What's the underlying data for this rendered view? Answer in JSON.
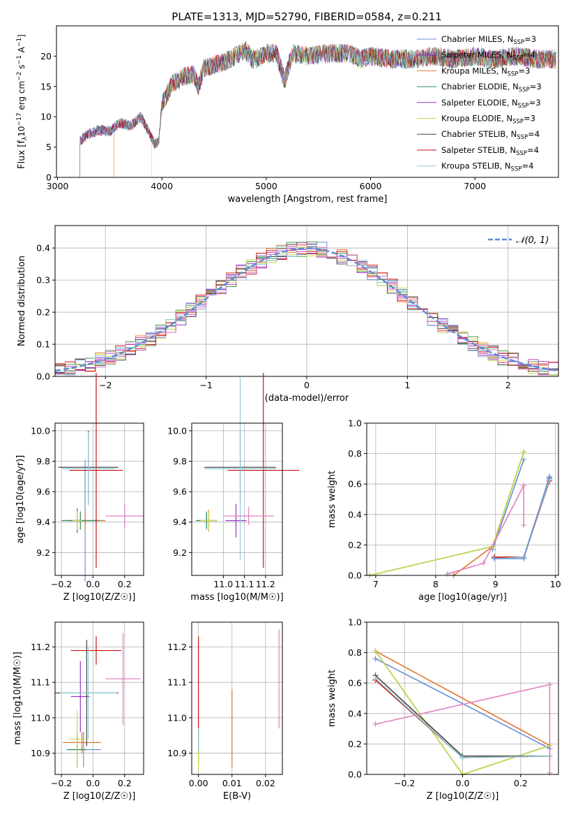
{
  "figure_title": "PLATE=1313, MJD=52790, FIBERID=0584, z=0.211",
  "chart_data": [
    {
      "id": "spectrum",
      "type": "line",
      "title": "PLATE=1313, MJD=52790, FIBERID=0584, z=0.211",
      "xlabel": "wavelength [Angstrom, rest frame]",
      "ylabel": "Flux [f_λ 10^-17 erg cm^-2 s^-1 A^-1]",
      "xlim": [
        2990,
        7800
      ],
      "ylim": [
        0,
        25
      ],
      "xticks": [
        3000,
        4000,
        5000,
        6000,
        7000
      ],
      "yticks": [
        0,
        5,
        10,
        15,
        20
      ],
      "grid": false,
      "legend_position": "right",
      "data_points": [
        [
          3215,
          6.0
        ],
        [
          3300,
          7.2
        ],
        [
          3400,
          7.8
        ],
        [
          3500,
          7.6
        ],
        [
          3600,
          9.0
        ],
        [
          3700,
          8.5
        ],
        [
          3800,
          10.0
        ],
        [
          3860,
          8.0
        ],
        [
          3930,
          5.5
        ],
        [
          3970,
          6.0
        ],
        [
          4000,
          12.0
        ],
        [
          4100,
          15.5
        ],
        [
          4200,
          16.5
        ],
        [
          4300,
          17.0
        ],
        [
          4350,
          15.0
        ],
        [
          4400,
          18.0
        ],
        [
          4500,
          18.5
        ],
        [
          4600,
          19.0
        ],
        [
          4700,
          20.0
        ],
        [
          4800,
          21.0
        ],
        [
          4860,
          19.5
        ],
        [
          4900,
          19.5
        ],
        [
          5000,
          20.5
        ],
        [
          5100,
          20.5
        ],
        [
          5175,
          16.0
        ],
        [
          5250,
          20.5
        ],
        [
          5400,
          20.0
        ],
        [
          5600,
          20.5
        ],
        [
          5800,
          20.5
        ],
        [
          5900,
          19.5
        ],
        [
          6000,
          20.0
        ],
        [
          6200,
          19.5
        ],
        [
          6400,
          19.5
        ],
        [
          6600,
          20.0
        ],
        [
          6800,
          19.5
        ],
        [
          7000,
          20.0
        ],
        [
          7200,
          19.5
        ],
        [
          7400,
          20.0
        ],
        [
          7600,
          19.5
        ]
      ],
      "series": [
        {
          "name": "Chabrier MILES, N_SSP=3",
          "color": "#6a8fd8",
          "start": 3215
        },
        {
          "name": "Salpeter MILES, N_SSP=4",
          "color": "#7b2fbf",
          "start": 3215
        },
        {
          "name": "Kroupa MILES, N_SSP=3",
          "color": "#e1762f",
          "start": 3540
        },
        {
          "name": "Chabrier ELODIE, N_SSP=3",
          "color": "#2e8b57",
          "start": 3215
        },
        {
          "name": "Salpeter ELODIE, N_SSP=3",
          "color": "#9b30c9",
          "start": 3215
        },
        {
          "name": "Kroupa ELODIE, N_SSP=3",
          "color": "#c8d94a",
          "start": 3900
        },
        {
          "name": "Chabrier STELIB, N_SSP=4",
          "color": "#444444",
          "start": 3215
        },
        {
          "name": "Salpeter STELIB, N_SSP=4",
          "color": "#cc1111",
          "start": 3215
        },
        {
          "name": "Kroupa STELIB, N_SSP=4",
          "color": "#8ecfd8",
          "start": 3215
        }
      ]
    },
    {
      "id": "histogram",
      "type": "bar",
      "title": "",
      "xlabel": "(data-model)/error",
      "ylabel": "Normed distribution",
      "xlim": [
        -2.5,
        2.5
      ],
      "ylim": [
        0,
        0.47
      ],
      "xticks": [
        -2,
        -1,
        0,
        1,
        2
      ],
      "yticks": [
        0.0,
        0.1,
        0.2,
        0.3,
        0.4
      ],
      "grid": true,
      "legend_position": "top-right",
      "legend": "N(0,1)",
      "gaussian_color": "#5b8bd6",
      "bin_edges_start": -2.5,
      "bin_width": 0.1,
      "hist_colors": [
        "#6a8fd8",
        "#9b30c9",
        "#e1762f",
        "#4a9a4a",
        "#c040c0",
        "#c8d94a",
        "#444444",
        "#cc1111",
        "#8ecfd8",
        "#e080c0"
      ]
    },
    {
      "id": "age-vs-Z",
      "type": "scatter",
      "xlabel": "Z [log10(Z/Z☉)]",
      "ylabel": "age  [log10(age/yr)]",
      "xlim": [
        -0.24,
        0.32
      ],
      "ylim": [
        9.05,
        10.05
      ],
      "xticks": [
        -0.2,
        0.0,
        0.2
      ],
      "yticks": [
        9.2,
        9.4,
        9.6,
        9.8,
        10.0
      ],
      "grid": true,
      "points": [
        {
          "x": -0.05,
          "y": 9.41,
          "xerr": 0.12,
          "yerr": 0.4,
          "color": "#6a8fd8"
        },
        {
          "x": -0.1,
          "y": 9.41,
          "xerr": 0.05,
          "yerr": 0.08,
          "color": "#9b30c9"
        },
        {
          "x": -0.05,
          "y": 9.41,
          "xerr": 0.13,
          "yerr": 0.06,
          "color": "#e1762f"
        },
        {
          "x": -0.08,
          "y": 9.41,
          "xerr": 0.12,
          "yerr": 0.06,
          "color": "#2e8b57"
        },
        {
          "x": -0.1,
          "y": 9.41,
          "xerr": 0.03,
          "yerr": 0.06,
          "color": "#c8d94a"
        },
        {
          "x": -0.03,
          "y": 9.76,
          "xerr": 0.19,
          "yerr": 0.24,
          "color": "#444444"
        },
        {
          "x": 0.02,
          "y": 9.74,
          "xerr": 0.17,
          "yerr": 0.64,
          "color": "#cc1111"
        },
        {
          "x": -0.03,
          "y": 9.75,
          "xerr": 0.17,
          "yerr": 0.24,
          "color": "#8ecfd8"
        },
        {
          "x": 0.2,
          "y": 9.44,
          "xerr": 0.12,
          "yerr": 0.08,
          "color": "#e080c0"
        }
      ]
    },
    {
      "id": "age-vs-mass",
      "type": "scatter",
      "xlabel": "mass [log10(M/M☉)]",
      "ylabel": "",
      "xlim": [
        10.85,
        11.28
      ],
      "ylim": [
        9.05,
        10.05
      ],
      "xticks": [
        11.0,
        11.1,
        11.2
      ],
      "yticks": [
        9.2,
        9.4,
        9.6,
        9.8,
        10.0
      ],
      "grid": true,
      "points": [
        {
          "x": 10.92,
          "y": 9.41,
          "xerr": 0.05,
          "yerr": 0.06,
          "color": "#6a8fd8"
        },
        {
          "x": 11.06,
          "y": 9.41,
          "xerr": 0.05,
          "yerr": 0.11,
          "color": "#9b30c9"
        },
        {
          "x": 10.93,
          "y": 9.41,
          "xerr": 0.04,
          "yerr": 0.07,
          "color": "#e1762f"
        },
        {
          "x": 10.92,
          "y": 9.41,
          "xerr": 0.05,
          "yerr": 0.05,
          "color": "#2e8b57"
        },
        {
          "x": 10.93,
          "y": 9.41,
          "xerr": 0.04,
          "yerr": 0.06,
          "color": "#c8d94a"
        },
        {
          "x": 11.08,
          "y": 9.76,
          "xerr": 0.17,
          "yerr": 0.24,
          "color": "#444444"
        },
        {
          "x": 11.19,
          "y": 9.74,
          "xerr": 0.17,
          "yerr": 0.64,
          "color": "#cc1111"
        },
        {
          "x": 11.08,
          "y": 9.75,
          "xerr": 0.17,
          "yerr": 0.6,
          "color": "#8ecfd8"
        },
        {
          "x": 11.12,
          "y": 9.44,
          "xerr": 0.12,
          "yerr": 0.06,
          "color": "#e080c0"
        }
      ]
    },
    {
      "id": "weight-vs-age",
      "type": "line",
      "xlabel": "age  [log10(age/yr)]",
      "ylabel": "mass weight",
      "xlim": [
        6.85,
        10.05
      ],
      "ylim": [
        0.0,
        1.0
      ],
      "xticks": [
        7,
        8,
        9,
        10
      ],
      "yticks": [
        0.0,
        0.2,
        0.4,
        0.6,
        0.8,
        1.0
      ],
      "grid": true,
      "series": [
        {
          "color": "#6a8fd8",
          "x": [
            8.95,
            9.47
          ],
          "y": [
            0.17,
            0.76
          ]
        },
        {
          "color": "#e1762f",
          "x": [
            8.3,
            8.95,
            9.47
          ],
          "y": [
            0.0,
            0.19,
            0.81
          ]
        },
        {
          "color": "#2e8b57",
          "x": [
            6.9,
            8.95,
            9.47
          ],
          "y": [
            0.0,
            0.19,
            0.81
          ]
        },
        {
          "color": "#c8d94a",
          "x": [
            6.9,
            8.95,
            9.47
          ],
          "y": [
            0.0,
            0.19,
            0.81
          ]
        },
        {
          "color": "#444444",
          "x": [
            8.98,
            9.47,
            9.9
          ],
          "y": [
            0.12,
            0.12,
            0.64
          ]
        },
        {
          "color": "#cc1111",
          "x": [
            8.98,
            9.47,
            9.9
          ],
          "y": [
            0.12,
            0.12,
            0.62
          ]
        },
        {
          "color": "#8ecfd8",
          "x": [
            8.98,
            9.47,
            9.9
          ],
          "y": [
            0.11,
            0.12,
            0.63
          ]
        },
        {
          "color": "#6a8fd8",
          "x": [
            8.98,
            9.47,
            9.9
          ],
          "y": [
            0.11,
            0.11,
            0.65
          ]
        },
        {
          "color": "#e080c0",
          "x": [
            8.2,
            8.8,
            9.47,
            9.47
          ],
          "y": [
            0.01,
            0.08,
            0.59,
            0.33
          ]
        }
      ]
    },
    {
      "id": "mass-vs-Z",
      "type": "scatter",
      "xlabel": "Z [log10(Z/Z☉)]",
      "ylabel": "mass [log10(M/M☉)]",
      "xlim": [
        -0.24,
        0.32
      ],
      "ylim": [
        10.84,
        11.27
      ],
      "xticks": [
        -0.2,
        0.0,
        0.2
      ],
      "yticks": [
        10.9,
        11.0,
        11.1,
        11.2
      ],
      "grid": true,
      "points": [
        {
          "x": -0.06,
          "y": 10.91,
          "xerr": 0.11,
          "yerr": 0.05,
          "color": "#6a8fd8"
        },
        {
          "x": -0.08,
          "y": 11.06,
          "xerr": 0.06,
          "yerr": 0.1,
          "color": "#9b30c9"
        },
        {
          "x": -0.07,
          "y": 10.93,
          "xerr": 0.12,
          "yerr": 0.03,
          "color": "#e1762f"
        },
        {
          "x": -0.1,
          "y": 10.91,
          "xerr": 0.06,
          "yerr": 0.05,
          "color": "#2e8b57"
        },
        {
          "x": -0.1,
          "y": 10.94,
          "xerr": 0.05,
          "yerr": 0.08,
          "color": "#c8d94a"
        },
        {
          "x": -0.04,
          "y": 11.07,
          "xerr": 0.2,
          "yerr": 0.15,
          "color": "#444444"
        },
        {
          "x": 0.02,
          "y": 11.19,
          "xerr": 0.16,
          "yerr": 0.04,
          "color": "#cc1111"
        },
        {
          "x": -0.03,
          "y": 11.07,
          "xerr": 0.18,
          "yerr": 0.13,
          "color": "#8ecfd8"
        },
        {
          "x": 0.19,
          "y": 11.11,
          "xerr": 0.11,
          "yerr": 0.13,
          "color": "#e080c0"
        }
      ]
    },
    {
      "id": "mass-vs-EBV",
      "type": "scatter",
      "xlabel": "E(B-V)",
      "ylabel": "",
      "xlim": [
        -0.002,
        0.025
      ],
      "ylim": [
        10.84,
        11.27
      ],
      "xticks": [
        0.0,
        0.01,
        0.02
      ],
      "yticks": [
        10.9,
        11.0,
        11.1,
        11.2
      ],
      "grid": true,
      "points": [
        {
          "x": 0.0,
          "y": 11.05,
          "xerr": 0.0,
          "yerr": 0.18,
          "color": "#cc1111"
        },
        {
          "x": 0.0,
          "y": 10.92,
          "xerr": 0.0,
          "yerr": 0.05,
          "color": "#8ecfd8"
        },
        {
          "x": 0.01,
          "y": 10.97,
          "xerr": 0.0,
          "yerr": 0.11,
          "color": "#e1762f"
        },
        {
          "x": 0.0,
          "y": 10.88,
          "xerr": 0.0,
          "yerr": 0.03,
          "color": "#c8d94a"
        },
        {
          "x": 0.024,
          "y": 11.11,
          "xerr": 0.0,
          "yerr": 0.14,
          "color": "#e080c0"
        }
      ]
    },
    {
      "id": "weight-vs-Z",
      "type": "line",
      "xlabel": "Z [log10(Z/Z☉)]",
      "ylabel": "mass weight",
      "xlim": [
        -0.33,
        0.33
      ],
      "ylim": [
        0.0,
        1.0
      ],
      "xticks": [
        -0.2,
        0.0,
        0.2
      ],
      "yticks": [
        0.0,
        0.2,
        0.4,
        0.6,
        0.8,
        1.0
      ],
      "grid": true,
      "series": [
        {
          "color": "#6a8fd8",
          "x": [
            -0.3,
            0.3
          ],
          "y": [
            0.76,
            0.17
          ]
        },
        {
          "color": "#e1762f",
          "x": [
            -0.3,
            0.3
          ],
          "y": [
            0.81,
            0.19
          ]
        },
        {
          "color": "#2e8b57",
          "x": [
            -0.3,
            0.0,
            0.3
          ],
          "y": [
            0.81,
            0.0,
            0.19
          ]
        },
        {
          "color": "#c8d94a",
          "x": [
            -0.3,
            0.0,
            0.3
          ],
          "y": [
            0.81,
            0.0,
            0.19
          ]
        },
        {
          "color": "#444444",
          "x": [
            -0.3,
            0.0,
            0.3
          ],
          "y": [
            0.65,
            0.12,
            0.12
          ]
        },
        {
          "color": "#cc1111",
          "x": [
            -0.3,
            0.0,
            0.3
          ],
          "y": [
            0.62,
            0.11,
            0.12
          ]
        },
        {
          "color": "#8ecfd8",
          "x": [
            -0.3,
            0.0,
            0.3
          ],
          "y": [
            0.63,
            0.11,
            0.12
          ]
        },
        {
          "color": "#e080c0",
          "x": [
            -0.3,
            0.3,
            0.3
          ],
          "y": [
            0.33,
            0.59,
            0.01
          ]
        }
      ]
    }
  ]
}
